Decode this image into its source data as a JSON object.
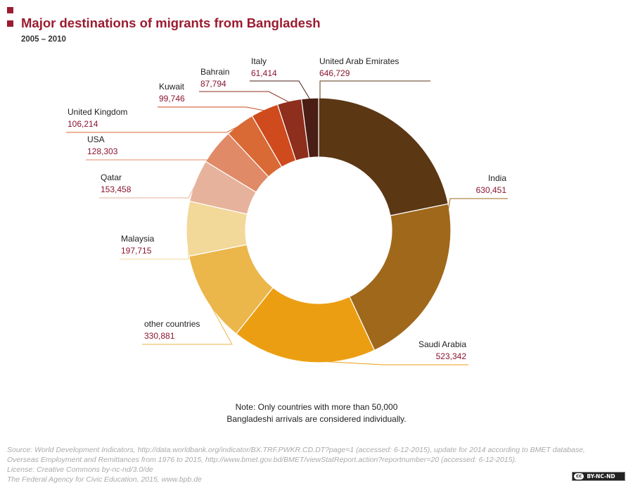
{
  "header": {
    "title": "Major destinations of migrants from Bangladesh",
    "subtitle": "2005 – 2010"
  },
  "chart_data": {
    "type": "pie",
    "subtype": "donut",
    "title": "Major destinations of migrants from Bangladesh",
    "subtitle": "2005 – 2010",
    "start": "12 o'clock, clockwise",
    "slices": [
      {
        "name": "United Arab Emirates",
        "value": 646729,
        "label": "646,729",
        "color": "#5b3714"
      },
      {
        "name": "India",
        "value": 630451,
        "label": "630,451",
        "color": "#a0681b"
      },
      {
        "name": "Saudi Arabia",
        "value": 523342,
        "label": "523,342",
        "color": "#ec9e12"
      },
      {
        "name": "other countries",
        "value": 330881,
        "label": "330,881",
        "color": "#ebb64a"
      },
      {
        "name": "Malaysia",
        "value": 197715,
        "label": "197,715",
        "color": "#f2d899"
      },
      {
        "name": "Qatar",
        "value": 153458,
        "label": "153,458",
        "color": "#e7b29b"
      },
      {
        "name": "USA",
        "value": 128303,
        "label": "128,303",
        "color": "#e08a67"
      },
      {
        "name": "United Kingdom",
        "value": 106214,
        "label": "106,214",
        "color": "#d96a35"
      },
      {
        "name": "Kuwait",
        "value": 99746,
        "label": "99,746",
        "color": "#cf4a1d"
      },
      {
        "name": "Bahrain",
        "value": 87794,
        "label": "87,794",
        "color": "#8e2e1c"
      },
      {
        "name": "Italy",
        "value": 61414,
        "label": "61,414",
        "color": "#4a1e14"
      }
    ],
    "label_color": "#8a1530"
  },
  "note": {
    "line1": "Note: Only countries with more than 50,000",
    "line2": "Bangladeshi arrivals are considered individually."
  },
  "footer": {
    "source1": "Source: World Development Indicators, http://data.worldbank.org/indicator/BX.TRF.PWKR.CD.DT?page=1 (accessed: 6-12-2015), update for 2014 according to BMET database,",
    "source2": "Overseas Employment and Remittances from 1976 to 2015, http://www.bmet.gov.bd/BMET/viewStatReport.action?reportnumber=20 (accessed: 6-12-2015).",
    "license": "License: Creative Commons by-nc-nd/3.0/de",
    "publisher": "The Federal Agency for Civic Education, 2015, www.bpb.de",
    "cc_badge": "BY-NC-ND",
    "cc_logo": "cc"
  }
}
